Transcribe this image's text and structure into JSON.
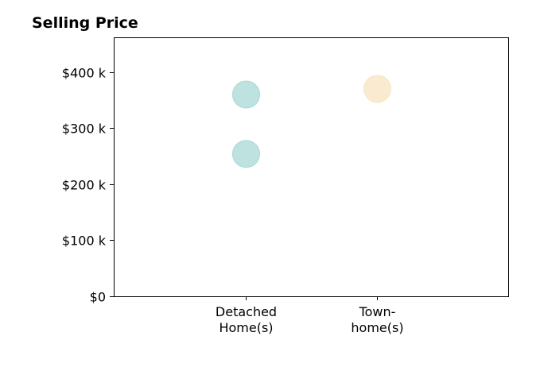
{
  "chart_data": {
    "type": "scatter",
    "title": "Selling Price",
    "xlabel": "",
    "ylabel": "",
    "categories": [
      {
        "line1": "Detached",
        "line2": "Home(s)"
      },
      {
        "line1": "Town-",
        "line2": "home(s)"
      }
    ],
    "y_ticks": [
      {
        "value": 0,
        "label": "$0"
      },
      {
        "value": 100000,
        "label": "$100 k"
      },
      {
        "value": 200000,
        "label": "$200 k"
      },
      {
        "value": 300000,
        "label": "$300 k"
      },
      {
        "value": 400000,
        "label": "$400 k"
      }
    ],
    "ylim": [
      0,
      462000
    ],
    "grid": false,
    "legend": "none",
    "points": [
      {
        "category": 0,
        "value": 360000,
        "color": "#a8d8d4"
      },
      {
        "category": 0,
        "value": 254000,
        "color": "#a8d8d4"
      },
      {
        "category": 1,
        "value": 370000,
        "color": "#f8e4c0"
      }
    ],
    "colors": {
      "detached": "#a8d8d4",
      "townhome": "#f8e4c0"
    }
  }
}
